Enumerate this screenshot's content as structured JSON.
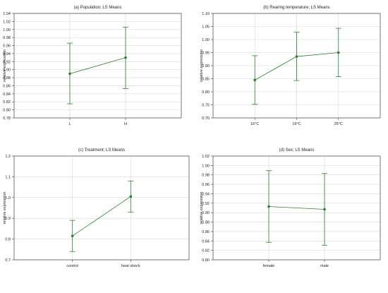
{
  "colors": {
    "series": "#2e7d32",
    "errorbar": "#2e7d32",
    "grid": "#d6d6d6",
    "frame": "#555555"
  },
  "chart_data": [
    {
      "type": "line",
      "title": "(a) Population; LS Means",
      "ylabel": "relative expression",
      "categories": [
        "L",
        "H"
      ],
      "values": [
        0.89,
        0.93
      ],
      "error_low": [
        0.815,
        0.853
      ],
      "error_high": [
        0.966,
        1.006
      ],
      "ylim": [
        0.78,
        1.04
      ],
      "yticks": [
        0.78,
        0.8,
        0.82,
        0.84,
        0.86,
        0.88,
        0.9,
        0.92,
        0.94,
        0.96,
        0.98,
        1.0,
        1.02,
        1.04
      ],
      "ytick_labels": [
        "0.78",
        "0.80",
        "0.82",
        "0.84",
        "0.86",
        "0.88",
        "0.90",
        "0.92",
        "0.94",
        "0.96",
        "0.98",
        "1.00",
        "1.02",
        "1.04"
      ],
      "grid": true
    },
    {
      "type": "line",
      "title": "(b) Rearing temperature; LS Means",
      "ylabel": "relative expression",
      "categories": [
        "16°C",
        "19°C",
        "25°C"
      ],
      "values": [
        0.845,
        0.935,
        0.95
      ],
      "error_low": [
        0.752,
        0.843,
        0.858
      ],
      "error_high": [
        0.938,
        1.028,
        1.043
      ],
      "ylim": [
        0.7,
        1.1
      ],
      "yticks": [
        0.7,
        0.75,
        0.8,
        0.85,
        0.9,
        0.95,
        1.0,
        1.05,
        1.1
      ],
      "ytick_labels": [
        "0.70",
        "0.75",
        "0.80",
        "0.85",
        "0.90",
        "0.95",
        "1.00",
        "1.05",
        "1.10"
      ],
      "grid": true
    },
    {
      "type": "line",
      "title": "(c) Treatment; LS Means",
      "ylabel": "relative expression",
      "categories": [
        "control",
        "heat shock"
      ],
      "values": [
        0.815,
        1.005
      ],
      "error_low": [
        0.74,
        0.93
      ],
      "error_high": [
        0.89,
        1.08
      ],
      "ylim": [
        0.7,
        1.2
      ],
      "yticks": [
        0.7,
        0.8,
        0.9,
        1.0,
        1.1,
        1.2
      ],
      "ytick_labels": [
        "0.7",
        "0.8",
        "0.9",
        "1.0",
        "1.1",
        "1.2"
      ],
      "grid": true
    },
    {
      "type": "line",
      "title": "(d) Sex; LS Means",
      "ylabel": "relative expression",
      "categories": [
        "female",
        "male"
      ],
      "values": [
        0.913,
        0.907
      ],
      "error_low": [
        0.837,
        0.831
      ],
      "error_high": [
        0.989,
        0.983
      ],
      "ylim": [
        0.8,
        1.02
      ],
      "yticks": [
        0.8,
        0.82,
        0.84,
        0.86,
        0.88,
        0.9,
        0.92,
        0.94,
        0.96,
        0.98,
        1.0,
        1.02
      ],
      "ytick_labels": [
        "0.80",
        "0.82",
        "0.84",
        "0.86",
        "0.88",
        "0.90",
        "0.92",
        "0.94",
        "0.96",
        "0.98",
        "1.00",
        "1.02"
      ],
      "grid": true
    }
  ]
}
